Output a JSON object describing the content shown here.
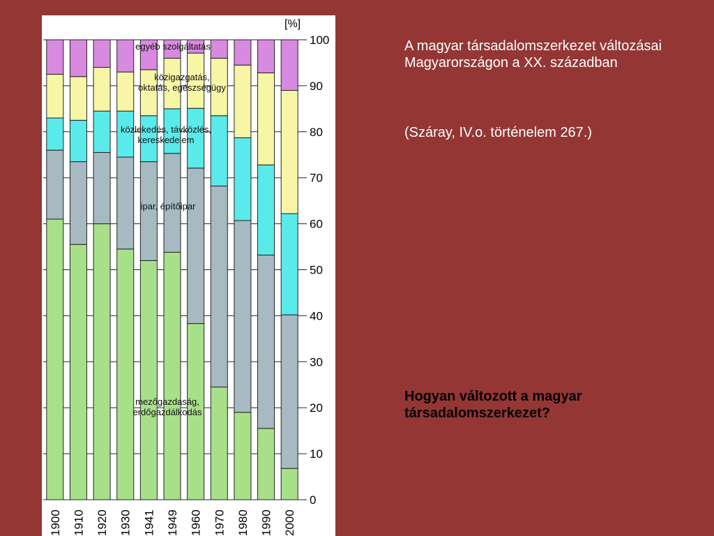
{
  "slide": {
    "title": "A magyar társadalomszerkezet változásai Magyarországon a XX. században",
    "source": "(Száray, IV.o. történelem 267.)",
    "question": "Hogyan változott a magyar társadalomszerkezet?"
  },
  "chart_data": {
    "type": "bar",
    "stacked": true,
    "title": "",
    "xlabel": "",
    "ylabel": "[%]",
    "ylim": [
      0,
      100
    ],
    "yticks": [
      0,
      10,
      20,
      30,
      40,
      50,
      60,
      70,
      80,
      90,
      100
    ],
    "grid": "horizontal",
    "categories": [
      "1900",
      "1910",
      "1920",
      "1930",
      "1941",
      "1949",
      "1960",
      "1970",
      "1980",
      "1990",
      "2000"
    ],
    "series": [
      {
        "name": "mezőgazdaság, erdőgazdálkodás",
        "label_lines": [
          "mezőgazdaság,",
          "erdőgazdálkodás"
        ],
        "color": "#a8e08a",
        "values": [
          61,
          55.5,
          60,
          54.5,
          52,
          53.8,
          38.3,
          24.5,
          19,
          15.5,
          6.8
        ]
      },
      {
        "name": "ipar, építőipar",
        "label_lines": [
          "ipar, építőipar"
        ],
        "color": "#a7b9c1",
        "values": [
          15,
          18,
          15.5,
          20,
          21.5,
          21.5,
          33.8,
          43.7,
          41.7,
          37.7,
          33.4
        ]
      },
      {
        "name": "közlekedés, távközlés, kereskedelem",
        "label_lines": [
          "közlekedés, távközlés,",
          "kereskedelem"
        ],
        "color": "#5aeaea",
        "values": [
          7,
          9,
          9,
          10,
          10,
          9.7,
          13,
          15.3,
          18,
          19.6,
          22
        ]
      },
      {
        "name": "közigazgatás, oktatás, egészségügy",
        "label_lines": [
          "közigazgatás,",
          "oktatás, egészségügy"
        ],
        "color": "#f6f6a6",
        "values": [
          9.5,
          9.5,
          9.5,
          8.5,
          10,
          11,
          12,
          12.5,
          15.8,
          20,
          26.8
        ]
      },
      {
        "name": "egyéb szolgáltatás",
        "label_lines": [
          "egyéb szolgáltatás"
        ],
        "color": "#d88ae0",
        "values": [
          7.5,
          8,
          6,
          7,
          6.5,
          4,
          2.9,
          4,
          5.5,
          7.2,
          11
        ]
      }
    ]
  }
}
